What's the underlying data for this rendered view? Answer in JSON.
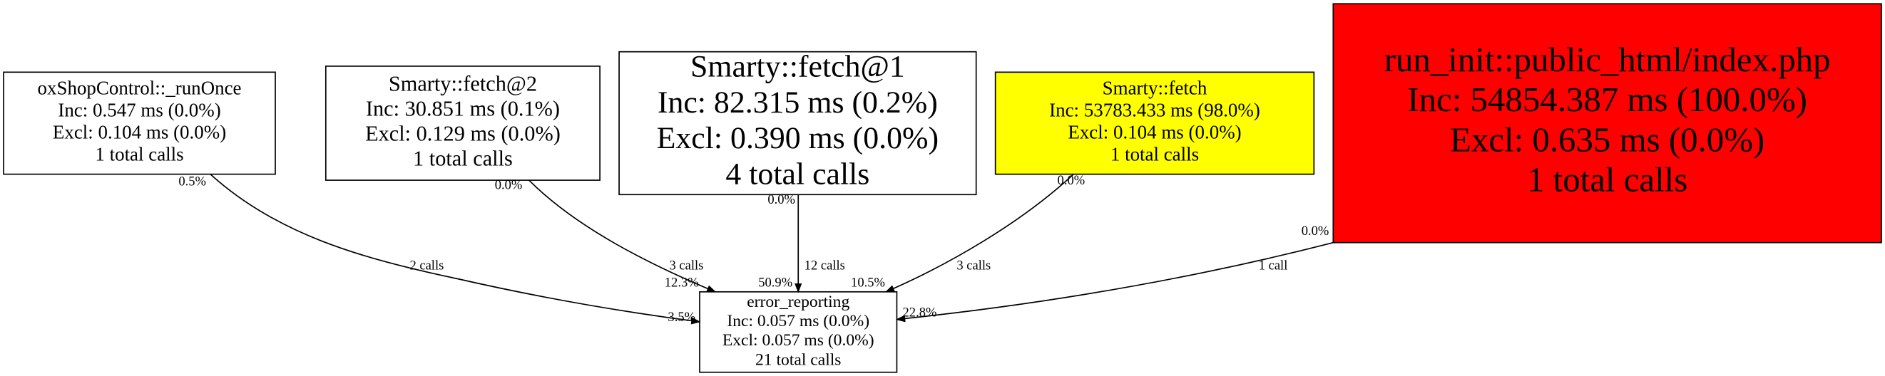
{
  "nodes": [
    {
      "lines": [
        "oxShopControl::_runOnce",
        "Inc: 0.547 ms (0.0%)",
        "Excl: 0.104 ms (0.0%)",
        "1 total calls"
      ]
    },
    {
      "lines": [
        "Smarty::fetch@2",
        "Inc: 30.851 ms (0.1%)",
        "Excl: 0.129 ms (0.0%)",
        "1 total calls"
      ]
    },
    {
      "lines": [
        "Smarty::fetch@1",
        "Inc: 82.315 ms (0.2%)",
        "Excl: 0.390 ms (0.0%)",
        "4 total calls"
      ]
    },
    {
      "lines": [
        "Smarty::fetch",
        "Inc: 53783.433 ms (98.0%)",
        "Excl: 0.104 ms (0.0%)",
        "1 total calls"
      ]
    },
    {
      "lines": [
        "run_init::public_html/index.php",
        "Inc: 54854.387 ms (100.0%)",
        "Excl: 0.635 ms (0.0%)",
        "1 total calls"
      ]
    },
    {
      "lines": [
        "error_reporting",
        "Inc: 0.057 ms (0.0%)",
        "Excl: 0.057 ms (0.0%)",
        "21 total calls"
      ]
    }
  ],
  "edges": [
    {
      "tail_label": "0.5%",
      "calls": "2 calls",
      "head_label": "3.5%"
    },
    {
      "tail_label": "0.0%",
      "calls": "3 calls",
      "head_label": "12.3%"
    },
    {
      "tail_label": "0.0%",
      "calls": "12 calls",
      "head_label": "50.9%"
    },
    {
      "tail_label": "0.0%",
      "calls": "3 calls",
      "head_label": "10.5%"
    },
    {
      "tail_label": "0.0%",
      "calls": "1 call",
      "head_label": "22.8%"
    }
  ]
}
